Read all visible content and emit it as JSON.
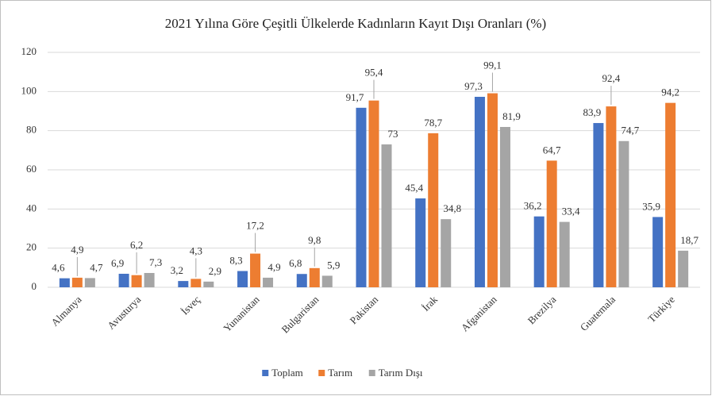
{
  "chart_data": {
    "type": "bar",
    "title": "2021 Yılına Göre Çeşitli Ülkelerde Kadınların Kayıt Dışı Oranları (%)",
    "categories": [
      "Almanya",
      "Avusturya",
      "İsveç",
      "Yunanistan",
      "Bulgaristan",
      "Pakistan",
      "İrak",
      "Afganistan",
      "Brezilya",
      "Guatemala",
      "Türkiye"
    ],
    "series": [
      {
        "name": "Toplam",
        "color": "#4472c4",
        "values": [
          4.6,
          6.9,
          3.2,
          8.3,
          6.8,
          91.7,
          45.4,
          97.3,
          36.2,
          83.9,
          35.9
        ],
        "value_labels": [
          "4,6",
          "6,9",
          "3,2",
          "8,3",
          "6,8",
          "91,7",
          "45,4",
          "97,3",
          "36,2",
          "83,9",
          "35,9"
        ]
      },
      {
        "name": "Tarım",
        "color": "#ed7d31",
        "values": [
          4.9,
          6.2,
          4.3,
          17.2,
          9.8,
          95.4,
          78.7,
          99.1,
          64.7,
          92.4,
          94.2
        ],
        "value_labels": [
          "4,9",
          "6,2",
          "4,3",
          "17,2",
          "9,8",
          "95,4",
          "78,7",
          "99,1",
          "64,7",
          "92,4",
          "94,2"
        ]
      },
      {
        "name": "Tarım Dışı",
        "color": "#a5a5a5",
        "values": [
          4.7,
          7.3,
          2.9,
          4.9,
          5.9,
          73,
          34.8,
          81.9,
          33.4,
          74.7,
          18.7
        ],
        "value_labels": [
          "4,7",
          "7,3",
          "2,9",
          "4,9",
          "5,9",
          "73",
          "34,8",
          "81,9",
          "33,4",
          "74,7",
          "18,7"
        ]
      }
    ],
    "ylim": [
      0,
      120
    ],
    "yticks": [
      0,
      20,
      40,
      60,
      80,
      100,
      120
    ],
    "grid": true,
    "legend": "bottom"
  }
}
